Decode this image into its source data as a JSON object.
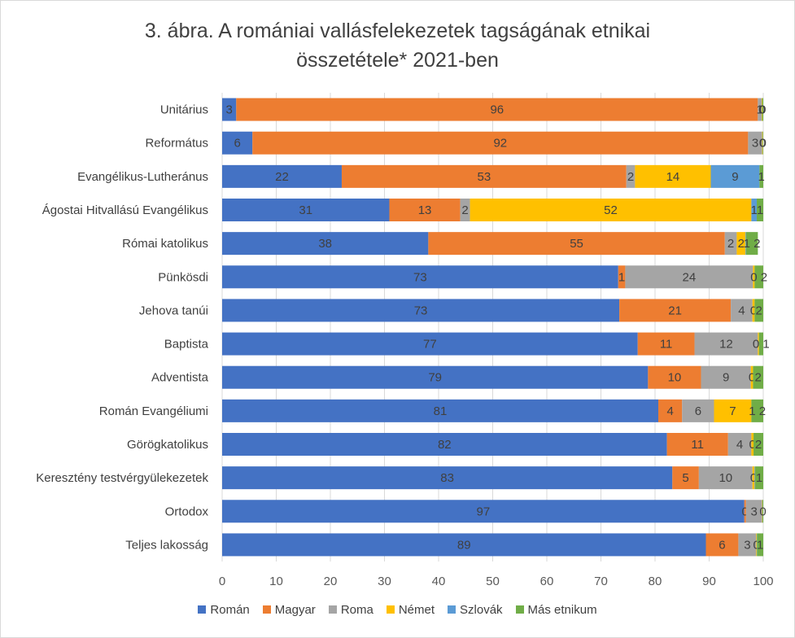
{
  "chart_data": {
    "type": "bar",
    "orientation": "horizontal",
    "stacked": true,
    "title": "3. ábra. A romániai vallásfelekezetek tagságának etnikai",
    "title_line2": "összetétele* 2021-ben",
    "xlabel": "",
    "ylabel": "",
    "xlim": [
      0,
      100
    ],
    "x_ticks": [
      0,
      10,
      20,
      30,
      40,
      50,
      60,
      70,
      80,
      90,
      100
    ],
    "grid": true,
    "legend_position": "bottom",
    "categories": [
      "Unitárius",
      "Református",
      "Evangélikus-Lutheránus",
      "Ágostai Hitvallású Evangélikus",
      "Római katolikus",
      "Pünkösdi",
      "Jehova tanúi",
      "Baptista",
      "Adventista",
      "Román Evangéliumi",
      "Görögkatolikus",
      "Keresztény testvérgyülekezetek",
      "Ortodox",
      "Teljes lakosság"
    ],
    "series": [
      {
        "name": "Román",
        "color": "#4472C4",
        "label_color": "#404040",
        "values": [
          2.6,
          5.6,
          22.1,
          30.9,
          38.1,
          73.2,
          73.4,
          76.8,
          78.7,
          80.6,
          82.2,
          83.2,
          96.5,
          89.4
        ]
      },
      {
        "name": "Magyar",
        "color": "#ED7D31",
        "label_color": "#404040",
        "values": [
          96.4,
          91.6,
          52.6,
          13.1,
          54.8,
          1.3,
          20.6,
          10.5,
          9.8,
          4.4,
          11.3,
          4.9,
          0.3,
          6.0
        ]
      },
      {
        "name": "Roma",
        "color": "#A5A5A5",
        "label_color": "#404040",
        "values": [
          0.7,
          2.6,
          1.6,
          1.8,
          2.2,
          23.6,
          4.0,
          11.7,
          9.2,
          5.9,
          4.3,
          9.9,
          3.0,
          3.3
        ]
      },
      {
        "name": "Német",
        "color": "#FFC000",
        "label_color": "#404040",
        "values": [
          0.1,
          0.1,
          14.0,
          52.0,
          1.6,
          0.3,
          0.4,
          0.2,
          0.4,
          6.9,
          0.4,
          0.4,
          0.05,
          0.1
        ]
      },
      {
        "name": "Szlovák",
        "color": "#5B9BD5",
        "label_color": "#404040",
        "values": [
          0.0,
          0.0,
          9.0,
          1.0,
          0.1,
          0.0,
          0.0,
          0.0,
          0.0,
          0.0,
          0.0,
          0.1,
          0.0,
          0.05
        ]
      },
      {
        "name": "Más etnikum",
        "color": "#70AD47",
        "label_color": "#404040",
        "values": [
          0.2,
          0.1,
          0.7,
          1.2,
          2.2,
          1.6,
          1.6,
          0.8,
          1.9,
          2.2,
          1.8,
          1.5,
          0.15,
          1.15
        ]
      }
    ],
    "data_labels": [
      [
        "3",
        "96",
        "1",
        "0",
        "",
        "0"
      ],
      [
        "6",
        "92",
        "3",
        "0",
        "",
        "0"
      ],
      [
        "22",
        "53",
        "2",
        "14",
        "9",
        "1"
      ],
      [
        "31",
        "13",
        "2",
        "52",
        "1",
        "1"
      ],
      [
        "38",
        "55",
        "2",
        "2",
        "",
        "1 2"
      ],
      [
        "73",
        "1",
        "24",
        "",
        "",
        "0 2"
      ],
      [
        "73",
        "21",
        "4",
        "0",
        "",
        "2"
      ],
      [
        "77",
        "11",
        "12",
        "",
        "",
        "0 1"
      ],
      [
        "79",
        "10",
        "9",
        "0",
        "",
        "2"
      ],
      [
        "81",
        "4",
        "6",
        "7",
        "",
        "1 2"
      ],
      [
        "82",
        "11",
        "4",
        "0",
        "",
        "2"
      ],
      [
        "83",
        "5",
        "10",
        "0",
        "",
        "1"
      ],
      [
        "97",
        "0",
        "3",
        "",
        "",
        "0"
      ],
      [
        "89",
        "6",
        "3",
        "0",
        "",
        "1"
      ]
    ]
  }
}
